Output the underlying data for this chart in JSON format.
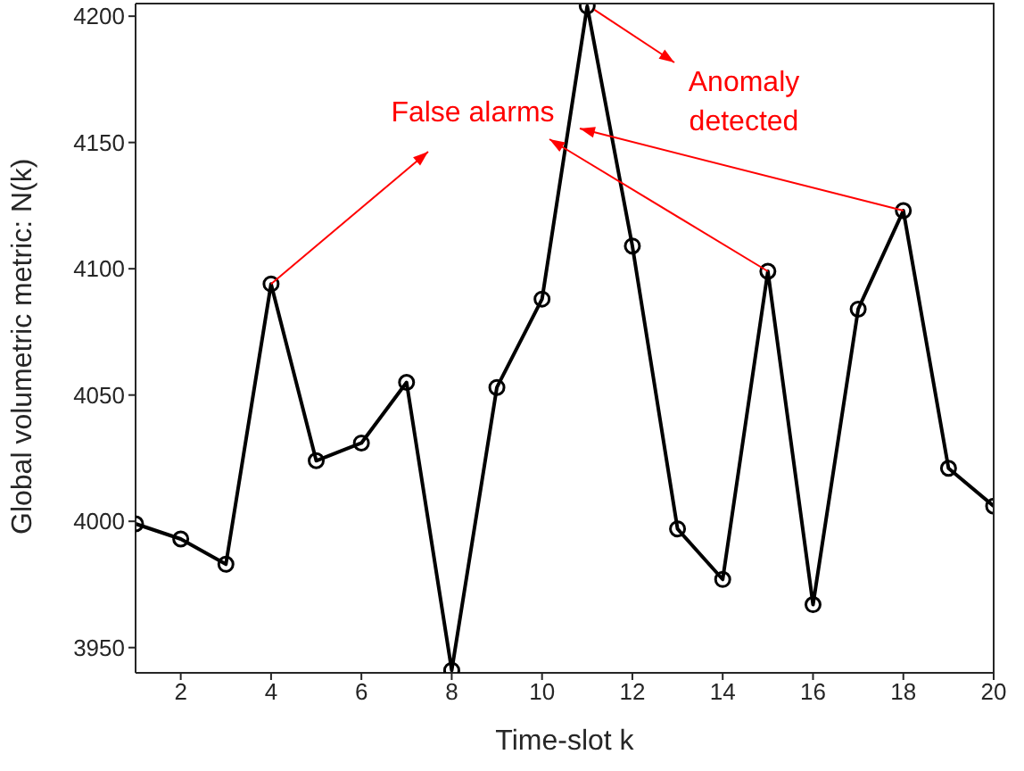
{
  "chart_data": {
    "type": "line",
    "xlabel": "Time-slot k",
    "ylabel": "Global volumetric metric: N(k)",
    "x": [
      1,
      2,
      3,
      4,
      5,
      6,
      7,
      8,
      9,
      10,
      11,
      12,
      13,
      14,
      15,
      16,
      17,
      18,
      19,
      20
    ],
    "series": [
      {
        "color": "#000000",
        "values": [
          3999,
          3993,
          3983,
          4094,
          4024,
          4031,
          4055,
          3941,
          4053,
          4088,
          4204,
          4109,
          3997,
          3977,
          4099,
          3967,
          4084,
          4123,
          4021,
          4006
        ]
      }
    ],
    "xlim": [
      1,
      20
    ],
    "xticks": [
      2,
      4,
      6,
      8,
      10,
      12,
      14,
      16,
      18,
      20
    ],
    "ylim": [
      3940,
      4205
    ],
    "yticks": [
      3950,
      4000,
      4050,
      4100,
      4150,
      4200
    ],
    "marker": "circle",
    "line_style": "solid",
    "grid": false,
    "annotations": [
      {
        "text": "False alarms",
        "x": 15,
        "y": 4099
      },
      {
        "text": "Anomaly detected",
        "x": 11,
        "y": 4204
      }
    ]
  }
}
